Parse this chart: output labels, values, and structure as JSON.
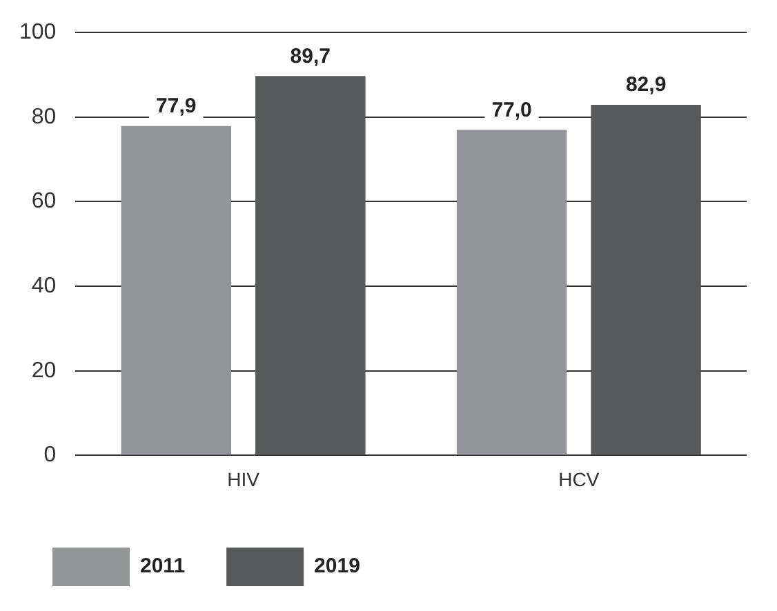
{
  "chart_data": {
    "type": "bar",
    "categories": [
      "HIV",
      "HCV"
    ],
    "series": [
      {
        "name": "2011",
        "color": "#939598",
        "values": [
          77.9,
          77.0
        ],
        "value_labels": [
          "77,9",
          "77,0"
        ]
      },
      {
        "name": "2019",
        "color": "#58595b",
        "values": [
          89.7,
          82.9
        ],
        "value_labels": [
          "89,7",
          "82,9"
        ]
      }
    ],
    "ylim": [
      0,
      100
    ],
    "yticks": [
      0,
      20,
      40,
      60,
      80,
      100
    ],
    "grid": "y",
    "legend": "bottom left"
  }
}
